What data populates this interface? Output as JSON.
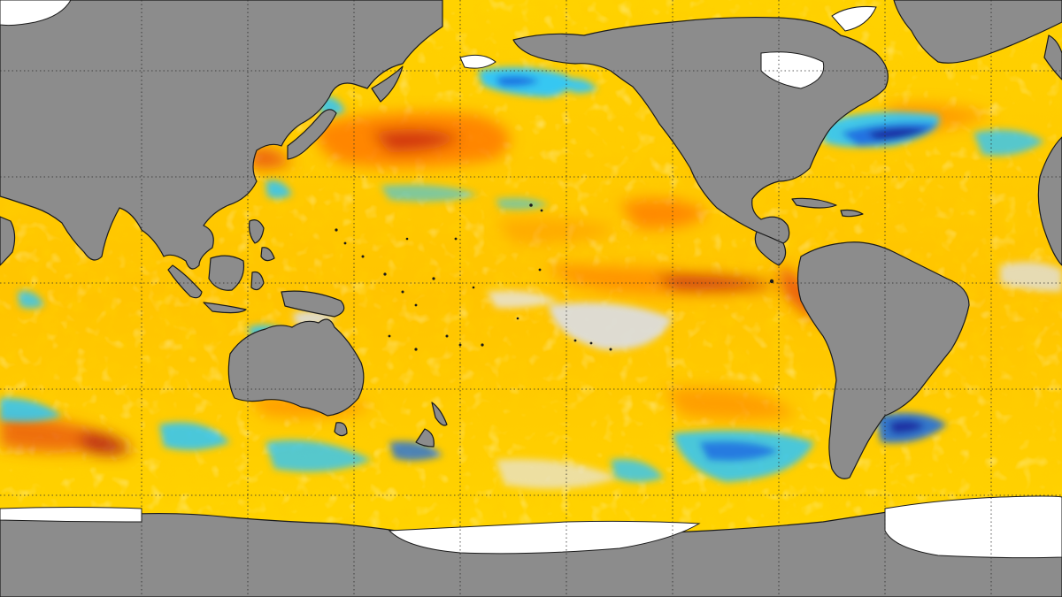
{
  "map": {
    "projection": "equirectangular",
    "center": "Pacific",
    "colors": {
      "land": "#8c8c8c",
      "ice": "#ffffff",
      "coast": "#1a1a1a",
      "graticule": "#2a2a2a",
      "anomaly_neutral": "#dcdcdc",
      "anomaly_warm_1": "#ffe400",
      "anomaly_warm_2": "#ffc000",
      "anomaly_warm_3": "#ff8c00",
      "anomaly_warm_4": "#e84a10",
      "anomaly_warm_5": "#b01818",
      "anomaly_cool_1": "#2bc6ff",
      "anomaly_cool_2": "#1f6fe0",
      "anomaly_cool_3": "#1c2ca0"
    },
    "graticule": {
      "style": "dotted",
      "columns": 8,
      "rows": 5
    }
  }
}
